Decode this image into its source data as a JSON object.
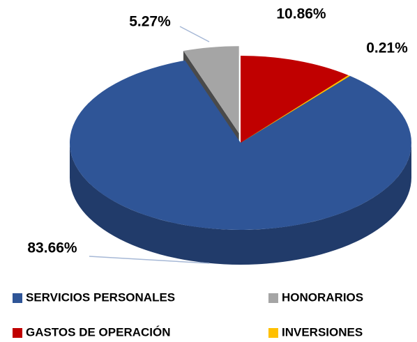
{
  "chart_data": {
    "type": "pie3d",
    "categories": [
      "SERVICIOS PERSONALES",
      "HONORARIOS",
      "GASTOS DE OPERACIÓN",
      "INVERSIONES"
    ],
    "values": [
      83.66,
      5.27,
      10.86,
      0.21
    ],
    "value_labels": [
      "83.66%",
      "5.27%",
      "10.86%",
      "0.21%"
    ],
    "colors": [
      "#2F5597",
      "#A5A5A5",
      "#C00000",
      "#FFC000"
    ],
    "legend": "bottom"
  }
}
